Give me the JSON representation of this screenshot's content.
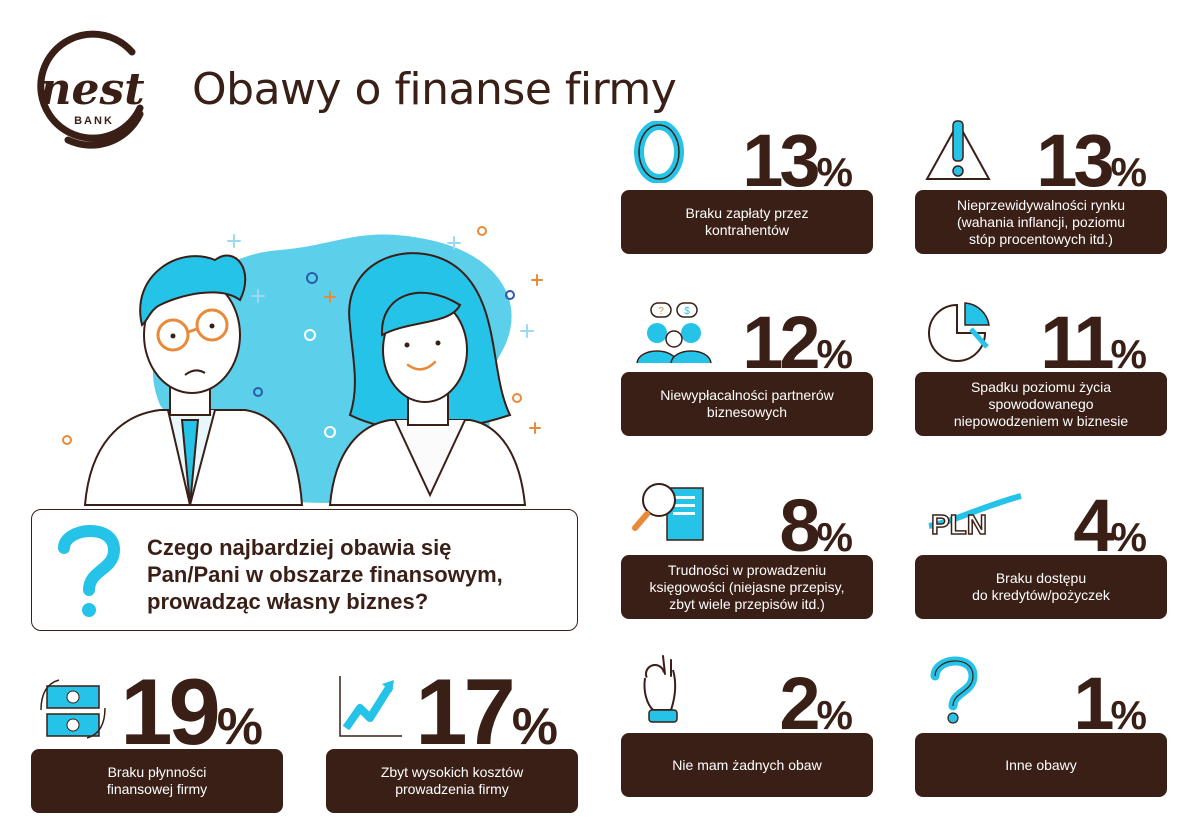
{
  "brand": {
    "name": "nest",
    "sub": "BANK"
  },
  "title": "Obawy o finanse firmy",
  "question": {
    "line1": "Czego najbardziej obawia się",
    "line2": "Pan/Pani w obszarze finansowym,",
    "line3": "prowadząc własny biznes?"
  },
  "colors": {
    "brown": "#3a1f17",
    "cyan": "#25c3e8",
    "orange": "#e88a3a",
    "navy": "#2a5da8"
  },
  "chart_data": {
    "type": "table",
    "unit": "%",
    "items": [
      {
        "value": 13,
        "label_lines": [
          "Braku zapłaty przez",
          "kontrahentów"
        ],
        "icon": "zero-icon"
      },
      {
        "value": 13,
        "label_lines": [
          "Nieprzewidywalności rynku",
          "(wahania inflancji, poziomu",
          "stóp procentowych itd.)"
        ],
        "icon": "warning-icon"
      },
      {
        "value": 12,
        "label_lines": [
          "Niewypłacalności partnerów",
          "biznesowych"
        ],
        "icon": "people-money-icon"
      },
      {
        "value": 11,
        "label_lines": [
          "Spadku poziomu życia",
          "spowodowanego",
          "niepowodzeniem w biznesie"
        ],
        "icon": "pie-chart-icon"
      },
      {
        "value": 8,
        "label_lines": [
          "Trudności w prowadzeniu",
          "księgowości (niejasne przepisy,",
          "zbyt wiele przepisów itd.)"
        ],
        "icon": "document-search-icon"
      },
      {
        "value": 4,
        "label_lines": [
          "Braku dostępu",
          "do kredytów/pożyczek"
        ],
        "icon": "pln-icon",
        "icon_text": "PLN"
      },
      {
        "value": 19,
        "label_lines": [
          "Braku płynności",
          "finansowej firmy"
        ],
        "icon": "banknote-cycle-icon"
      },
      {
        "value": 17,
        "label_lines": [
          "Zbyt wysokich kosztów",
          "prowadzenia firmy"
        ],
        "icon": "growth-chart-icon"
      },
      {
        "value": 2,
        "label_lines": [
          "Nie mam żadnych obaw"
        ],
        "icon": "ok-hand-icon"
      },
      {
        "value": 1,
        "label_lines": [
          "Inne obawy"
        ],
        "icon": "question-icon"
      }
    ]
  }
}
